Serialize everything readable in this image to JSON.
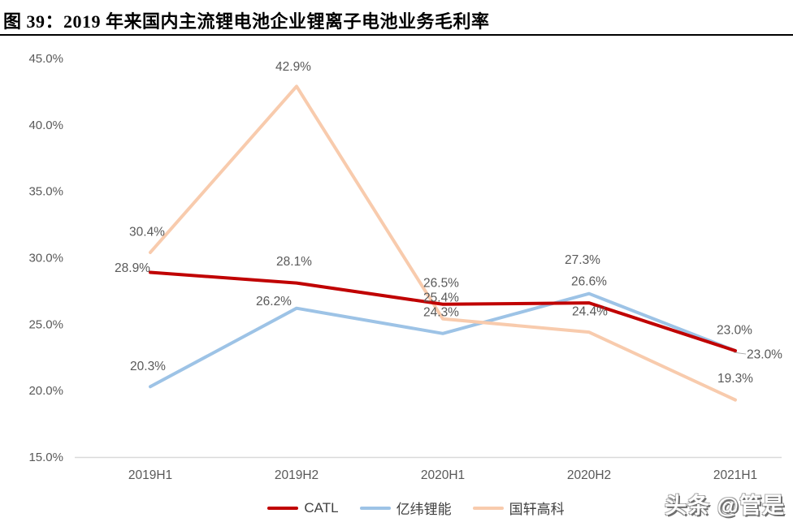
{
  "figure": {
    "title": "图 39：2019 年来国内主流锂电池企业锂离子电池业务毛利率"
  },
  "watermark": {
    "text": "头条 @管是"
  },
  "chart_data": {
    "type": "line",
    "title": "2019 年来国内主流锂电池企业锂离子电池业务毛利率",
    "categories": [
      "2019H1",
      "2019H2",
      "2020H1",
      "2020H2",
      "2021H1"
    ],
    "series": [
      {
        "name": "CATL",
        "color": "#C00000",
        "values": [
          28.9,
          28.1,
          26.5,
          26.6,
          23.0
        ]
      },
      {
        "name": "亿纬锂能",
        "color": "#9DC3E6",
        "values": [
          20.3,
          26.2,
          24.3,
          27.3,
          23.0
        ]
      },
      {
        "name": "国轩高科",
        "color": "#F8CBAD",
        "values": [
          30.4,
          42.9,
          25.4,
          24.4,
          19.3
        ]
      }
    ],
    "ylim": [
      15,
      45
    ],
    "ytick_step": 5,
    "ytick_labels": [
      "15.0%",
      "20.0%",
      "25.0%",
      "30.0%",
      "35.0%",
      "40.0%",
      "45.0%"
    ],
    "xlabel": "",
    "ylabel": "",
    "grid": false,
    "data_labels": true,
    "data_label_format": "0.0%",
    "legend_position": "bottom",
    "axis_line_color": "#D9D9D9",
    "tick_label_color": "#595959",
    "data_label_color": "#595959"
  }
}
